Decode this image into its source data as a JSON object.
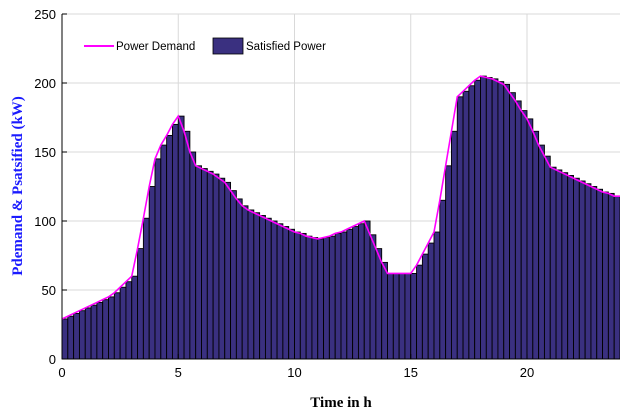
{
  "chart_data": {
    "type": "bar",
    "xlabel": "Time in h",
    "ylabel": "Pdemand & Psatsified (kW)",
    "xlim": [
      0,
      24
    ],
    "ylim": [
      0,
      250
    ],
    "x_ticks": [
      0,
      5,
      10,
      15,
      20
    ],
    "y_ticks": [
      0,
      50,
      100,
      150,
      200,
      250
    ],
    "grid": true,
    "legend_position": "top-left",
    "colors": {
      "demand_line": "#ff00ff",
      "bar_fill": "#3a3080",
      "bar_edge": "#000000",
      "ylabel": "#1a1aff"
    },
    "x": [
      0.0,
      0.25,
      0.5,
      0.75,
      1.0,
      1.25,
      1.5,
      1.75,
      2.0,
      2.25,
      2.5,
      2.75,
      3.0,
      3.25,
      3.5,
      3.75,
      4.0,
      4.25,
      4.5,
      4.75,
      5.0,
      5.25,
      5.5,
      5.75,
      6.0,
      6.25,
      6.5,
      6.75,
      7.0,
      7.25,
      7.5,
      7.75,
      8.0,
      8.25,
      8.5,
      8.75,
      9.0,
      9.25,
      9.5,
      9.75,
      10.0,
      10.25,
      10.5,
      10.75,
      11.0,
      11.25,
      11.5,
      11.75,
      12.0,
      12.25,
      12.5,
      12.75,
      13.0,
      13.25,
      13.5,
      13.75,
      14.0,
      14.25,
      14.5,
      14.75,
      15.0,
      15.25,
      15.5,
      15.75,
      16.0,
      16.25,
      16.5,
      16.75,
      17.0,
      17.25,
      17.5,
      17.75,
      18.0,
      18.25,
      18.5,
      18.75,
      19.0,
      19.25,
      19.5,
      19.75,
      20.0,
      20.25,
      20.5,
      20.75,
      21.0,
      21.25,
      21.5,
      21.75,
      22.0,
      22.25,
      22.5,
      22.75,
      23.0,
      23.25,
      23.5,
      23.75
    ],
    "series": [
      {
        "name": "Power Demand",
        "kind": "line",
        "values": [
          29,
          31,
          33,
          35,
          37,
          39,
          41,
          43,
          45,
          48,
          52,
          56,
          60,
          80,
          102,
          125,
          145,
          155,
          162,
          170,
          176,
          165,
          150,
          140,
          138,
          136,
          134,
          131,
          128,
          122,
          116,
          111,
          108,
          106,
          104,
          102,
          100,
          98,
          96,
          94,
          92,
          91,
          89,
          88,
          87,
          88,
          89,
          91,
          92,
          94,
          96,
          98,
          100,
          90,
          80,
          70,
          62,
          62,
          62,
          62,
          62,
          68,
          76,
          84,
          92,
          115,
          140,
          165,
          190,
          194,
          198,
          202,
          205,
          204,
          203,
          201,
          199,
          193,
          187,
          180,
          174,
          165,
          155,
          147,
          139,
          137,
          135,
          133,
          131,
          129,
          127,
          125,
          123,
          121,
          120,
          118
        ]
      },
      {
        "name": "Satisfied Power",
        "kind": "bar",
        "values": [
          29,
          31,
          33,
          35,
          37,
          39,
          41,
          43,
          45,
          48,
          52,
          56,
          60,
          80,
          102,
          125,
          145,
          155,
          162,
          170,
          176,
          165,
          150,
          140,
          138,
          136,
          134,
          131,
          128,
          122,
          116,
          111,
          108,
          106,
          104,
          102,
          100,
          98,
          96,
          94,
          92,
          91,
          89,
          88,
          87,
          88,
          89,
          91,
          92,
          94,
          96,
          98,
          100,
          90,
          80,
          70,
          62,
          62,
          62,
          62,
          62,
          68,
          76,
          84,
          92,
          115,
          140,
          165,
          190,
          194,
          198,
          202,
          205,
          204,
          203,
          201,
          199,
          193,
          187,
          180,
          174,
          165,
          155,
          147,
          139,
          137,
          135,
          133,
          131,
          129,
          127,
          125,
          123,
          121,
          120,
          118
        ]
      }
    ]
  }
}
